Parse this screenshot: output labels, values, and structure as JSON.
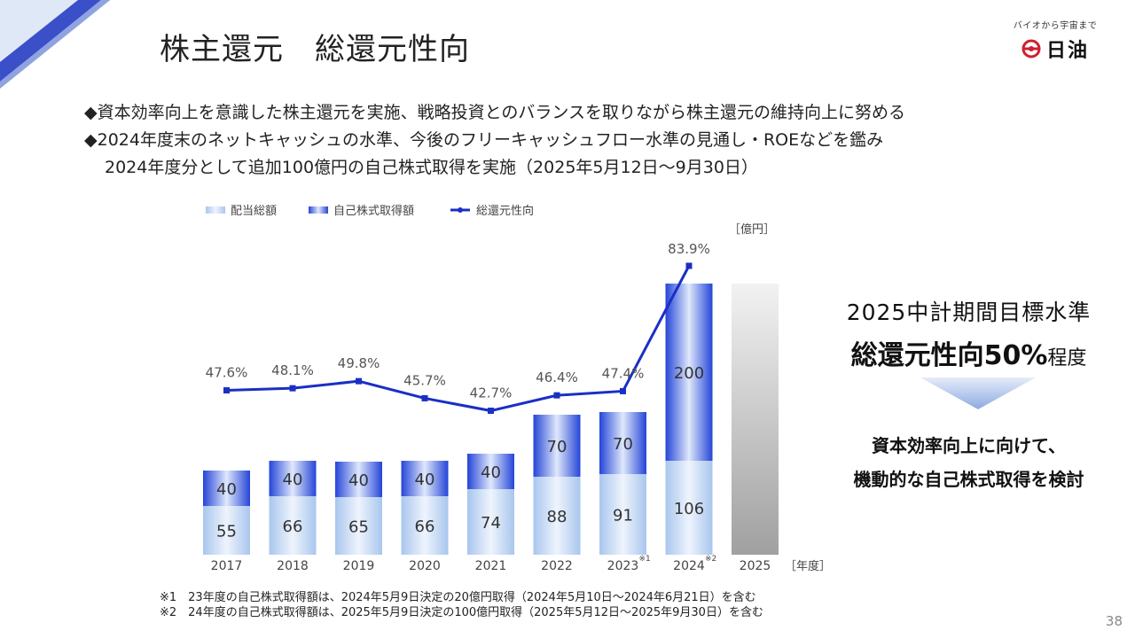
{
  "slide": {
    "title": "株主還元　総還元性向",
    "logo_tagline": "バイオから宇宙まで",
    "logo_name": "日油",
    "bullets": [
      "◆資本効率向上を意識した株主還元を実施、戦略投資とのバランスを取りながら株主還元の維持向上に努める",
      "◆2024年度末のネットキャッシュの水準、今後のフリーキャッシュフロー水準の見通し・ROEなどを鑑み",
      "2024年度分として追加100億円の自己株式取得を実施（2025年5月12日～9月30日）"
    ],
    "target_title": "2025中計期間目標水準",
    "target_main": "総還元性向50%",
    "target_suffix": "程度",
    "conclusion": [
      "資本効率向上に向けて、",
      "機動的な自己株式取得を検討"
    ],
    "notes": [
      "※1　23年度の自己株式取得額は、2024年5月9日決定の20億円取得（2024年5月10日～2024年6月21日）を含む",
      "※2　24年度の自己株式取得額は、2025年5月9日決定の100億円取得（2025年5月12日～2025年9月30日）を含む"
    ],
    "page_number": "38"
  },
  "chart_data": {
    "type": "bar",
    "stacked": true,
    "unit_label": "［億円］",
    "x_unit_label": "［年度］",
    "categories": [
      "2017",
      "2018",
      "2019",
      "2020",
      "2021",
      "2022",
      "2023",
      "2024",
      "2025"
    ],
    "category_marks": [
      "",
      "",
      "",
      "",
      "",
      "",
      "※1",
      "※2",
      ""
    ],
    "series": [
      {
        "name": "配当総額",
        "values": [
          55,
          66,
          65,
          66,
          74,
          88,
          91,
          106,
          null
        ],
        "color": "#c9dcf2"
      },
      {
        "name": "自己株式取得額",
        "values": [
          40,
          40,
          40,
          40,
          40,
          70,
          70,
          200,
          null
        ],
        "color": "#2b4fd6"
      }
    ],
    "line_series": {
      "name": "総還元性向",
      "unit": "%",
      "values": [
        47.6,
        48.1,
        49.8,
        45.7,
        42.7,
        46.4,
        47.4,
        83.9,
        null
      ],
      "color": "#1a2fc4"
    },
    "line_labels": [
      "47.6%",
      "48.1%",
      "49.8%",
      "45.7%",
      "42.7%",
      "46.4%",
      "47.4%",
      "83.9%"
    ],
    "forecast_category": "2025",
    "ylim": [
      0,
      330
    ],
    "legend_position": "top-left",
    "grid": false
  }
}
